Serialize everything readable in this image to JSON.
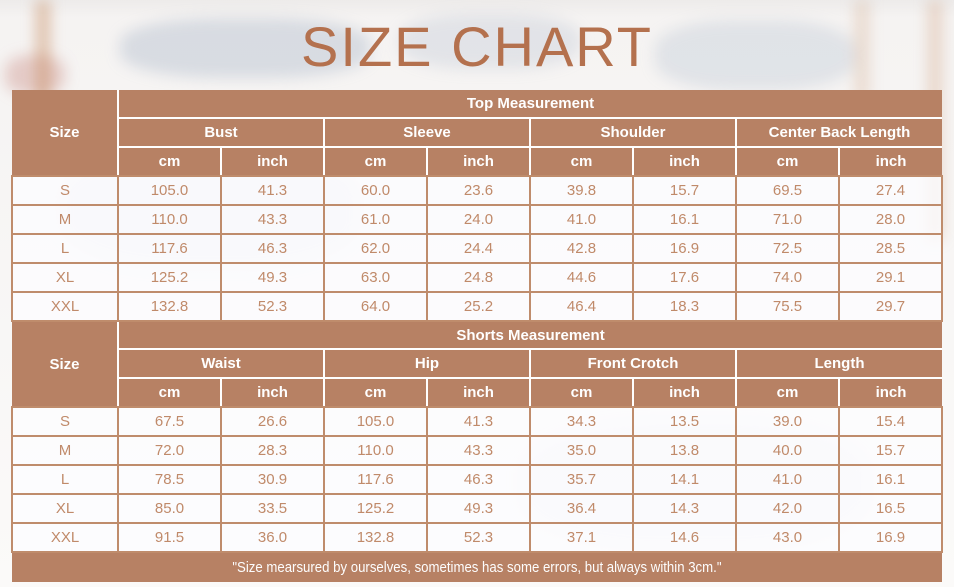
{
  "title": "SIZE CHART",
  "footer_note": "\"Size mearsured by ourselves, sometimes has some errors, but always within 3cm.\"",
  "colors": {
    "header_bg": "#b78164",
    "grid_line": "#bf8c6c",
    "cell_text": "#c08a6a",
    "title_text": "#b4714e"
  },
  "sections": [
    {
      "title": "Top Measurement",
      "size_label": "Size",
      "groups": [
        "Bust",
        "Sleeve",
        "Shoulder",
        "Center Back Length"
      ],
      "units": [
        "cm",
        "inch"
      ],
      "rows": [
        {
          "size": "S",
          "values": [
            "105.0",
            "41.3",
            "60.0",
            "23.6",
            "39.8",
            "15.7",
            "69.5",
            "27.4"
          ]
        },
        {
          "size": "M",
          "values": [
            "110.0",
            "43.3",
            "61.0",
            "24.0",
            "41.0",
            "16.1",
            "71.0",
            "28.0"
          ]
        },
        {
          "size": "L",
          "values": [
            "117.6",
            "46.3",
            "62.0",
            "24.4",
            "42.8",
            "16.9",
            "72.5",
            "28.5"
          ]
        },
        {
          "size": "XL",
          "values": [
            "125.2",
            "49.3",
            "63.0",
            "24.8",
            "44.6",
            "17.6",
            "74.0",
            "29.1"
          ]
        },
        {
          "size": "XXL",
          "values": [
            "132.8",
            "52.3",
            "64.0",
            "25.2",
            "46.4",
            "18.3",
            "75.5",
            "29.7"
          ]
        }
      ]
    },
    {
      "title": "Shorts Measurement",
      "size_label": "Size",
      "groups": [
        "Waist",
        "Hip",
        "Front Crotch",
        "Length"
      ],
      "units": [
        "cm",
        "inch"
      ],
      "rows": [
        {
          "size": "S",
          "values": [
            "67.5",
            "26.6",
            "105.0",
            "41.3",
            "34.3",
            "13.5",
            "39.0",
            "15.4"
          ]
        },
        {
          "size": "M",
          "values": [
            "72.0",
            "28.3",
            "110.0",
            "43.3",
            "35.0",
            "13.8",
            "40.0",
            "15.7"
          ]
        },
        {
          "size": "L",
          "values": [
            "78.5",
            "30.9",
            "117.6",
            "46.3",
            "35.7",
            "14.1",
            "41.0",
            "16.1"
          ]
        },
        {
          "size": "XL",
          "values": [
            "85.0",
            "33.5",
            "125.2",
            "49.3",
            "36.4",
            "14.3",
            "42.0",
            "16.5"
          ]
        },
        {
          "size": "XXL",
          "values": [
            "91.5",
            "36.0",
            "132.8",
            "52.3",
            "37.1",
            "14.6",
            "43.0",
            "16.9"
          ]
        }
      ]
    }
  ]
}
